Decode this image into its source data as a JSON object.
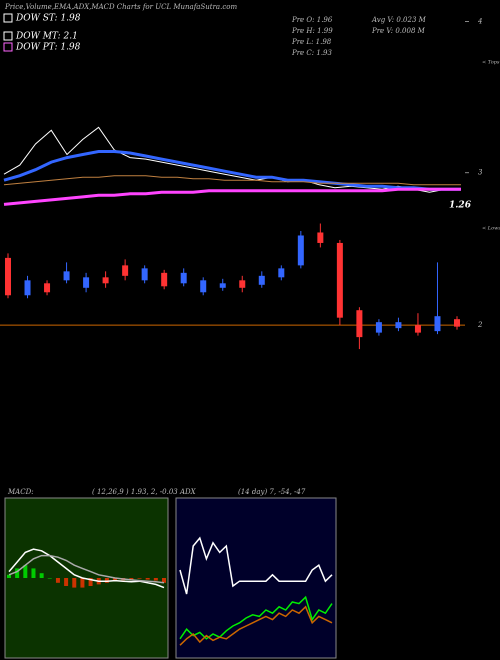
{
  "chart_data": [
    {
      "type": "line",
      "title": "Price,Volume,EMA,ADX,MACD Charts for UCL  MunafaSutra.com",
      "legend_items": [
        {
          "label": "DOW ST: 1.98",
          "color": "#ffffff"
        },
        {
          "label": "DOW MT: 2.1",
          "color": "#ffffff"
        },
        {
          "label": "DOW PT: 1.98",
          "color": "#ff66ff"
        }
      ],
      "info": [
        "Pre  O: 1.96",
        "Pre  H: 1.99",
        "Pre  L: 1.98",
        "Pre  C: 1.93",
        "Avg V: 0.023 M",
        "Pre  V: 0.008  M"
      ],
      "annotations": [
        "1.26",
        "< Tops"
      ],
      "ylim": [
        2.72,
        4.01
      ],
      "yticks": [
        4,
        3
      ],
      "series": [
        {
          "name": "Close",
          "color": "#ffffff",
          "width": 1,
          "values": [
            2.99,
            3.05,
            3.19,
            3.28,
            3.12,
            3.22,
            3.3,
            3.15,
            3.1,
            3.09,
            3.07,
            3.05,
            3.03,
            3.01,
            2.99,
            2.97,
            2.95,
            2.97,
            2.94,
            2.95,
            2.92,
            2.9,
            2.91,
            2.9,
            2.89,
            2.91,
            2.89,
            2.87,
            2.89,
            2.89
          ]
        },
        {
          "name": "EMA",
          "color": "#3366ff",
          "width": 3,
          "values": [
            2.95,
            2.98,
            3.02,
            3.07,
            3.1,
            3.12,
            3.14,
            3.14,
            3.13,
            3.11,
            3.09,
            3.07,
            3.05,
            3.03,
            3.01,
            2.99,
            2.97,
            2.97,
            2.95,
            2.95,
            2.94,
            2.93,
            2.92,
            2.91,
            2.91,
            2.9,
            2.9,
            2.89,
            2.89,
            2.89
          ]
        },
        {
          "name": "EMA2",
          "color": "#c08040",
          "width": 1,
          "values": [
            2.92,
            2.93,
            2.94,
            2.95,
            2.96,
            2.97,
            2.97,
            2.98,
            2.98,
            2.98,
            2.97,
            2.97,
            2.96,
            2.96,
            2.95,
            2.95,
            2.95,
            2.94,
            2.94,
            2.94,
            2.93,
            2.93,
            2.93,
            2.93,
            2.93,
            2.93,
            2.92,
            2.92,
            2.92,
            2.92
          ]
        },
        {
          "name": "EMA3",
          "color": "#ff44ff",
          "width": 3,
          "values": [
            2.79,
            2.8,
            2.81,
            2.82,
            2.83,
            2.84,
            2.85,
            2.85,
            2.86,
            2.86,
            2.87,
            2.87,
            2.87,
            2.88,
            2.88,
            2.88,
            2.88,
            2.88,
            2.88,
            2.88,
            2.88,
            2.88,
            2.88,
            2.88,
            2.88,
            2.89,
            2.89,
            2.89,
            2.89,
            2.89
          ]
        }
      ]
    },
    {
      "type": "candlestick",
      "annotations": [
        "< Lows"
      ],
      "ylim": [
        1.7,
        2.65
      ],
      "yticks": [
        2
      ],
      "up_color": "#3366ff",
      "down_color": "#ff3333",
      "open": [
        2.45,
        2.2,
        2.28,
        2.3,
        2.25,
        2.32,
        2.4,
        2.3,
        2.35,
        2.28,
        2.22,
        2.25,
        2.3,
        2.27,
        2.32,
        2.4,
        2.62,
        2.55,
        2.1,
        1.95,
        1.98,
        2.0,
        1.96,
        2.04
      ],
      "high": [
        2.48,
        2.33,
        2.3,
        2.42,
        2.35,
        2.36,
        2.44,
        2.4,
        2.37,
        2.38,
        2.32,
        2.31,
        2.33,
        2.36,
        2.4,
        2.63,
        2.68,
        2.57,
        2.12,
        2.04,
        2.05,
        2.08,
        2.42,
        2.06
      ],
      "low": [
        2.18,
        2.18,
        2.2,
        2.28,
        2.22,
        2.25,
        2.3,
        2.28,
        2.24,
        2.26,
        2.2,
        2.23,
        2.22,
        2.25,
        2.3,
        2.38,
        2.52,
        2.0,
        1.84,
        1.93,
        1.96,
        1.93,
        1.94,
        1.97
      ],
      "close": [
        2.2,
        2.3,
        2.22,
        2.36,
        2.32,
        2.28,
        2.33,
        2.38,
        2.26,
        2.35,
        2.3,
        2.28,
        2.25,
        2.33,
        2.38,
        2.6,
        2.55,
        2.05,
        1.92,
        2.02,
        2.02,
        1.95,
        2.06,
        1.99
      ]
    },
    {
      "type": "macd",
      "label": "MACD:",
      "params": "( 12,26,9 ) 1.93, 2, -0.03",
      "background": "#0b3300",
      "ylim": [
        -0.25,
        0.25
      ],
      "series": [
        {
          "name": "Histogram",
          "kind": "bar",
          "color": "#00cc00",
          "negative_color": "#cc3300",
          "values": [
            0.01,
            0.03,
            0.04,
            0.03,
            0.015,
            0,
            -0.015,
            -0.025,
            -0.03,
            -0.03,
            -0.025,
            -0.02,
            -0.015,
            -0.008,
            -0.007,
            -0.006,
            -0.002,
            -0.005,
            -0.008,
            -0.015
          ]
        },
        {
          "name": "MACD",
          "kind": "line",
          "color": "#ffffff",
          "values": [
            0.02,
            0.05,
            0.08,
            0.09,
            0.085,
            0.07,
            0.05,
            0.03,
            0.01,
            0,
            -0.005,
            -0.01,
            -0.01,
            -0.008,
            -0.01,
            -0.012,
            -0.01,
            -0.015,
            -0.02,
            -0.03
          ]
        },
        {
          "name": "Signal",
          "kind": "line",
          "color": "#aaaaaa",
          "values": [
            0.01,
            0.02,
            0.04,
            0.06,
            0.07,
            0.07,
            0.065,
            0.055,
            0.04,
            0.03,
            0.02,
            0.01,
            0.005,
            0,
            -0.003,
            -0.006,
            -0.008,
            -0.01,
            -0.012,
            -0.015
          ]
        }
      ]
    },
    {
      "type": "adx",
      "label": "ADX",
      "params": "(14  day) 7, -54, -47",
      "background": "#00002a",
      "ylim": [
        0,
        100
      ],
      "series": [
        {
          "name": "ADX",
          "kind": "line",
          "color": "#ffffff",
          "values": [
            55,
            40,
            70,
            75,
            62,
            72,
            66,
            70,
            45,
            48,
            48,
            48,
            48,
            48,
            52,
            48,
            48,
            48,
            48,
            48,
            55,
            58,
            48,
            52
          ]
        },
        {
          "name": "+DI",
          "kind": "line",
          "color": "#00ee00",
          "values": [
            12,
            18,
            14,
            16,
            12,
            15,
            13,
            17,
            20,
            22,
            25,
            27,
            26,
            30,
            28,
            32,
            30,
            35,
            34,
            38,
            24,
            30,
            28,
            34
          ]
        },
        {
          "name": "-DI",
          "kind": "line",
          "color": "#cc6600",
          "values": [
            8,
            12,
            15,
            10,
            14,
            11,
            13,
            12,
            15,
            18,
            20,
            22,
            24,
            26,
            24,
            28,
            26,
            30,
            28,
            32,
            22,
            26,
            24,
            22
          ]
        }
      ]
    }
  ]
}
